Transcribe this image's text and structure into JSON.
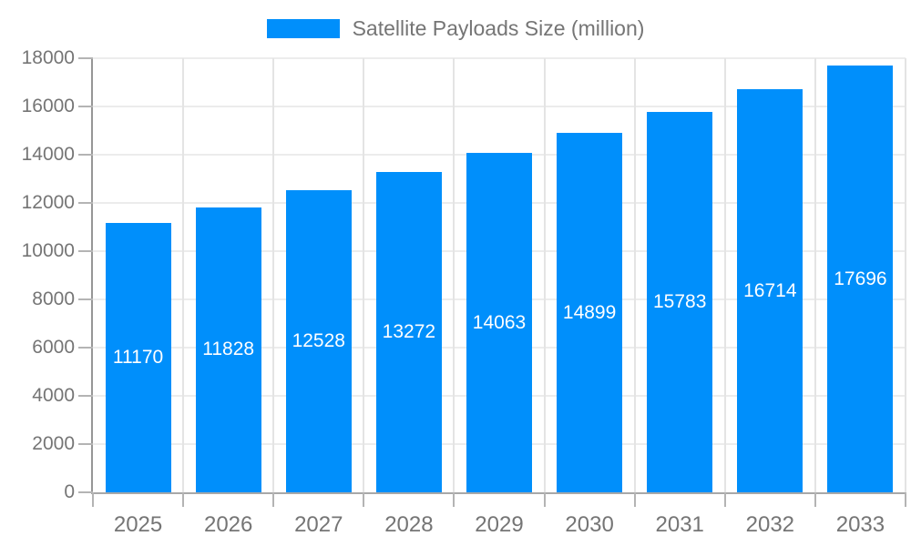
{
  "chart_data": {
    "type": "bar",
    "title": "Satellite Payloads Size (million)",
    "categories": [
      "2025",
      "2026",
      "2027",
      "2028",
      "2029",
      "2030",
      "2031",
      "2032",
      "2033"
    ],
    "values": [
      11170,
      11828,
      12528,
      13272,
      14063,
      14899,
      15783,
      16714,
      17696
    ],
    "xlabel": "",
    "ylabel": "",
    "ylim": [
      0,
      18000
    ],
    "y_tick_step": 2000,
    "grid": true,
    "legend_position": "top",
    "bar_color": "#008FFB",
    "bar_value_label_color": "#ffffff",
    "axis_text_color": "#757575"
  }
}
